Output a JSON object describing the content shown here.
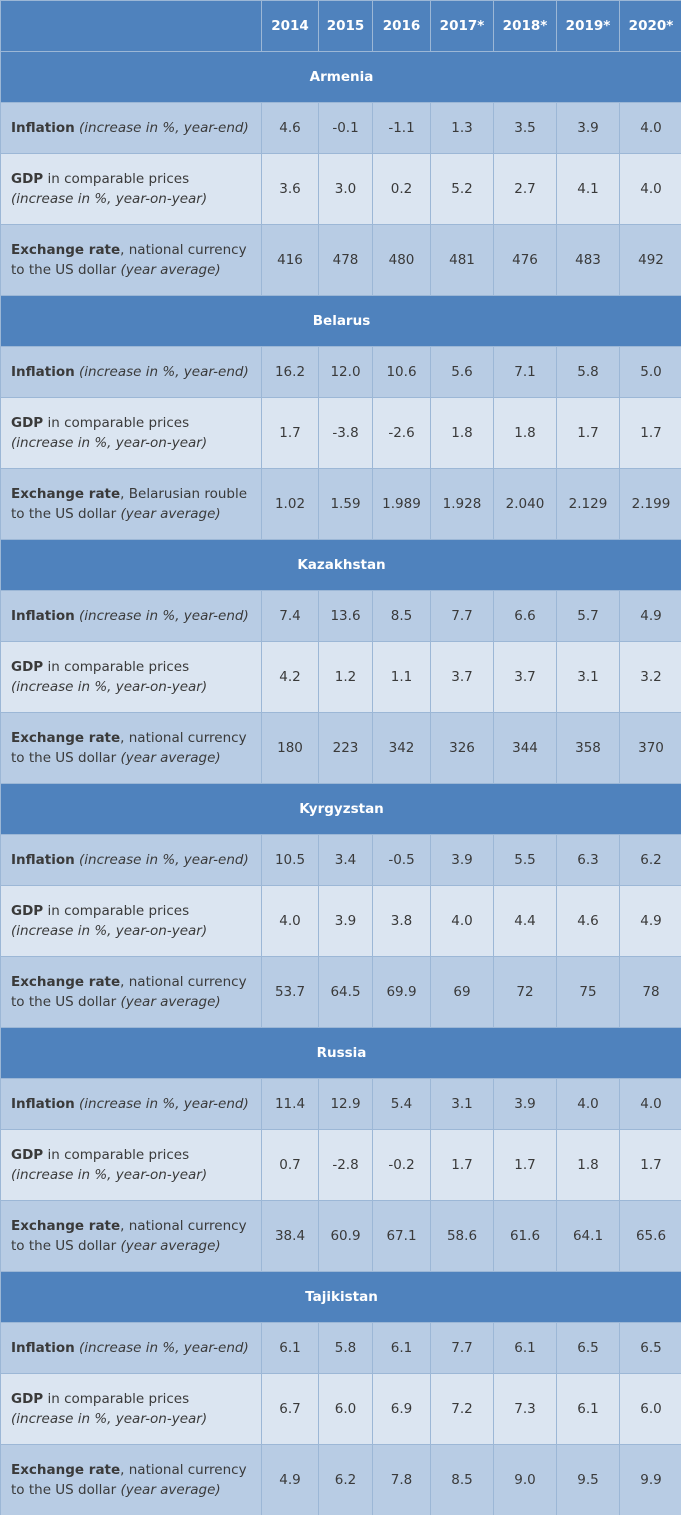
{
  "headers": [
    "2014",
    "2015",
    "2016",
    "2017*",
    "2018*",
    "2019*",
    "2020*"
  ],
  "row_labels": {
    "inflation": {
      "bold": "Inflation",
      "italic": "(increase in %, year-end)"
    },
    "gdp": {
      "bold": "GDP",
      "plain": "in comparable prices",
      "italic": "(increase in %, year-on-year)"
    },
    "gdp_belarus": {
      "bold": "GDP",
      "plain": "in comparable prices",
      "italic": "(increase in %, year-on-year)"
    },
    "fx": {
      "bold": "Exchange rate",
      "plain": ", national currency to the US dollar",
      "italic": "(year average)"
    },
    "fx_belarus": {
      "bold": "Exchange rate",
      "plain": ", Belarusian rouble to the US dollar",
      "italic": "(year average)"
    }
  },
  "countries": [
    {
      "name": "Armenia",
      "inflation": [
        "4.6",
        "-0.1",
        "-1.1",
        "1.3",
        "3.5",
        "3.9",
        "4.0"
      ],
      "gdp": [
        "3.6",
        "3.0",
        "0.2",
        "5.2",
        "2.7",
        "4.1",
        "4.0"
      ],
      "fx": [
        "416",
        "478",
        "480",
        "481",
        "476",
        "483",
        "492"
      ]
    },
    {
      "name": "Belarus",
      "inflation": [
        "16.2",
        "12.0",
        "10.6",
        "5.6",
        "7.1",
        "5.8",
        "5.0"
      ],
      "gdp": [
        "1.7",
        "-3.8",
        "-2.6",
        "1.8",
        "1.8",
        "1.7",
        "1.7"
      ],
      "fx": [
        "1.02",
        "1.59",
        "1.989",
        "1.928",
        "2.040",
        "2.129",
        "2.199"
      ]
    },
    {
      "name": "Kazakhstan",
      "inflation": [
        "7.4",
        "13.6",
        "8.5",
        "7.7",
        "6.6",
        "5.7",
        "4.9"
      ],
      "gdp": [
        "4.2",
        "1.2",
        "1.1",
        "3.7",
        "3.7",
        "3.1",
        "3.2"
      ],
      "fx": [
        "180",
        "223",
        "342",
        "326",
        "344",
        "358",
        "370"
      ]
    },
    {
      "name": "Kyrgyzstan",
      "inflation": [
        "10.5",
        "3.4",
        "-0.5",
        "3.9",
        "5.5",
        "6.3",
        "6.2"
      ],
      "gdp": [
        "4.0",
        "3.9",
        "3.8",
        "4.0",
        "4.4",
        "4.6",
        "4.9"
      ],
      "fx": [
        "53.7",
        "64.5",
        "69.9",
        "69",
        "72",
        "75",
        "78"
      ]
    },
    {
      "name": "Russia",
      "inflation": [
        "11.4",
        "12.9",
        "5.4",
        "3.1",
        "3.9",
        "4.0",
        "4.0"
      ],
      "gdp": [
        "0.7",
        "-2.8",
        "-0.2",
        "1.7",
        "1.7",
        "1.8",
        "1.7"
      ],
      "fx": [
        "38.4",
        "60.9",
        "67.1",
        "58.6",
        "61.6",
        "64.1",
        "65.6"
      ]
    },
    {
      "name": "Tajikistan",
      "inflation": [
        "6.1",
        "5.8",
        "6.1",
        "7.7",
        "6.1",
        "6.5",
        "6.5"
      ],
      "gdp": [
        "6.7",
        "6.0",
        "6.9",
        "7.2",
        "7.3",
        "6.1",
        "6.0"
      ],
      "fx": [
        "4.9",
        "6.2",
        "7.8",
        "8.5",
        "9.0",
        "9.5",
        "9.9"
      ]
    }
  ]
}
